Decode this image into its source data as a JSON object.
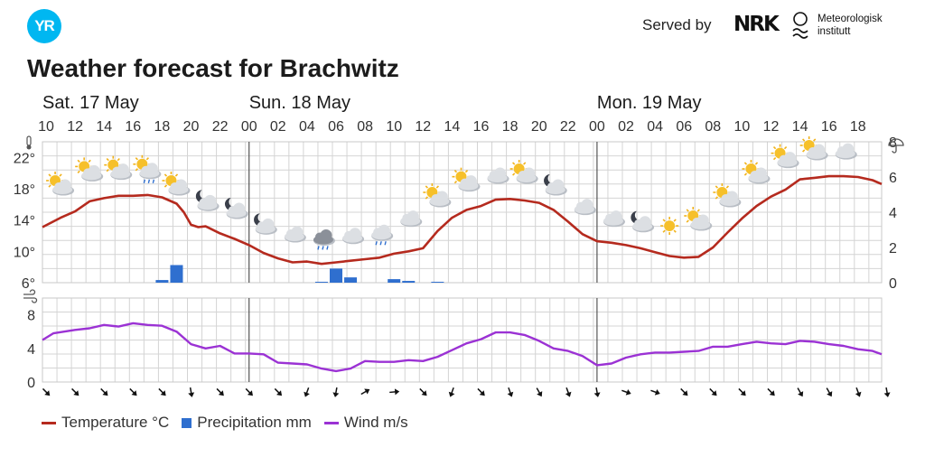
{
  "header": {
    "logo": "YR",
    "served_by": "Served by",
    "nrk": "NRK",
    "met_line1": "Meteorologisk",
    "met_line2": "institutt"
  },
  "title": "Weather forecast for Brachwitz",
  "colors": {
    "temperature": "#b52a1e",
    "precipitation": "#2f6fcf",
    "wind": "#9b32d4",
    "grid": "#d4d4d4",
    "axis": "#555555"
  },
  "legend": {
    "temperature": "Temperature °C",
    "precipitation": "Precipitation mm",
    "wind": "Wind m/s"
  },
  "chart_data": {
    "type": "line",
    "day_labels": [
      {
        "label": "Sat. 17 May",
        "start_hour": 9.75
      },
      {
        "label": "Sun. 18 May",
        "start_hour": 24
      },
      {
        "label": "Mon. 19 May",
        "start_hour": 48
      }
    ],
    "x_hour_range": [
      9.75,
      66
    ],
    "hour_ticks": [
      {
        "h": 10,
        "t": "10"
      },
      {
        "h": 12,
        "t": "12"
      },
      {
        "h": 14,
        "t": "14"
      },
      {
        "h": 16,
        "t": "16"
      },
      {
        "h": 18,
        "t": "18"
      },
      {
        "h": 20,
        "t": "20"
      },
      {
        "h": 22,
        "t": "22"
      },
      {
        "h": 24,
        "t": "00"
      },
      {
        "h": 26,
        "t": "02"
      },
      {
        "h": 28,
        "t": "04"
      },
      {
        "h": 30,
        "t": "06"
      },
      {
        "h": 32,
        "t": "08"
      },
      {
        "h": 34,
        "t": "10"
      },
      {
        "h": 36,
        "t": "12"
      },
      {
        "h": 38,
        "t": "14"
      },
      {
        "h": 40,
        "t": "16"
      },
      {
        "h": 42,
        "t": "18"
      },
      {
        "h": 44,
        "t": "20"
      },
      {
        "h": 46,
        "t": "22"
      },
      {
        "h": 48,
        "t": "00"
      },
      {
        "h": 50,
        "t": "02"
      },
      {
        "h": 52,
        "t": "04"
      },
      {
        "h": 54,
        "t": "06"
      },
      {
        "h": 56,
        "t": "08"
      },
      {
        "h": 58,
        "t": "10"
      },
      {
        "h": 60,
        "t": "12"
      },
      {
        "h": 62,
        "t": "14"
      },
      {
        "h": 64,
        "t": "16"
      },
      {
        "h": 66,
        "t": "18"
      }
    ],
    "temperature": {
      "unit": "°C",
      "ylim": [
        6,
        24
      ],
      "ticks": [
        {
          "v": 6,
          "t": "6°"
        },
        {
          "v": 10,
          "t": "10°"
        },
        {
          "v": 14,
          "t": "14°"
        },
        {
          "v": 18,
          "t": "18°"
        },
        {
          "v": 22,
          "t": "22°"
        }
      ],
      "points": [
        [
          9.75,
          13.1
        ],
        [
          11,
          14.3
        ],
        [
          12,
          15.1
        ],
        [
          13,
          16.4
        ],
        [
          14,
          16.8
        ],
        [
          15,
          17.1
        ],
        [
          16,
          17.1
        ],
        [
          17,
          17.2
        ],
        [
          18,
          16.9
        ],
        [
          19,
          16.1
        ],
        [
          19.5,
          15
        ],
        [
          20,
          13.4
        ],
        [
          20.5,
          13.1
        ],
        [
          21,
          13.2
        ],
        [
          22,
          12.3
        ],
        [
          23,
          11.6
        ],
        [
          24,
          10.8
        ],
        [
          25,
          9.8
        ],
        [
          26,
          9.1
        ],
        [
          27,
          8.6
        ],
        [
          28,
          8.7
        ],
        [
          29,
          8.4
        ],
        [
          30,
          8.6
        ],
        [
          31,
          8.8
        ],
        [
          32,
          9
        ],
        [
          33,
          9.2
        ],
        [
          34,
          9.7
        ],
        [
          35,
          10
        ],
        [
          36,
          10.4
        ],
        [
          37,
          12.6
        ],
        [
          38,
          14.3
        ],
        [
          39,
          15.3
        ],
        [
          40,
          15.8
        ],
        [
          41,
          16.6
        ],
        [
          42,
          16.7
        ],
        [
          43,
          16.5
        ],
        [
          44,
          16.2
        ],
        [
          45,
          15.3
        ],
        [
          46,
          13.8
        ],
        [
          47,
          12.2
        ],
        [
          48,
          11.3
        ],
        [
          49,
          11.1
        ],
        [
          50,
          10.8
        ],
        [
          51,
          10.4
        ],
        [
          52,
          9.9
        ],
        [
          53,
          9.4
        ],
        [
          54,
          9.2
        ],
        [
          55,
          9.3
        ],
        [
          56,
          10.5
        ],
        [
          57,
          12.4
        ],
        [
          58,
          14.2
        ],
        [
          59,
          15.8
        ],
        [
          60,
          17
        ],
        [
          61,
          17.9
        ],
        [
          62,
          19.2
        ],
        [
          63,
          19.4
        ],
        [
          64,
          19.6
        ],
        [
          65,
          19.6
        ],
        [
          66,
          19.5
        ],
        [
          67,
          19.1
        ],
        [
          68,
          18.6
        ]
      ]
    },
    "precipitation": {
      "unit": "mm",
      "ylim": [
        0,
        8
      ],
      "ticks": [
        {
          "v": 0,
          "t": "0"
        },
        {
          "v": 2,
          "t": "2"
        },
        {
          "v": 4,
          "t": "4"
        },
        {
          "v": 6,
          "t": "6"
        },
        {
          "v": 8,
          "t": "8"
        }
      ],
      "bars": [
        {
          "h": 18,
          "v": 0.15
        },
        {
          "h": 19,
          "v": 1
        },
        {
          "h": 29,
          "v": 0.05
        },
        {
          "h": 30,
          "v": 0.8
        },
        {
          "h": 31,
          "v": 0.3
        },
        {
          "h": 34,
          "v": 0.2
        },
        {
          "h": 35,
          "v": 0.1
        },
        {
          "h": 37,
          "v": 0.05
        }
      ]
    },
    "wind": {
      "unit": "m/s",
      "ylim": [
        0,
        10
      ],
      "ticks": [
        {
          "v": 0,
          "t": "0"
        },
        {
          "v": 4,
          "t": "4"
        },
        {
          "v": 8,
          "t": "8"
        }
      ],
      "points": [
        [
          9.75,
          5
        ],
        [
          10.5,
          5.8
        ],
        [
          12,
          6.2
        ],
        [
          13,
          6.4
        ],
        [
          14,
          6.8
        ],
        [
          15,
          6.6
        ],
        [
          16,
          7
        ],
        [
          17,
          6.8
        ],
        [
          18,
          6.7
        ],
        [
          19,
          6
        ],
        [
          20,
          4.5
        ],
        [
          21,
          4
        ],
        [
          22,
          4.3
        ],
        [
          23,
          3.4
        ],
        [
          24,
          3.4
        ],
        [
          25,
          3.3
        ],
        [
          26,
          2.3
        ],
        [
          27,
          2.2
        ],
        [
          28,
          2.1
        ],
        [
          29,
          1.6
        ],
        [
          30,
          1.3
        ],
        [
          31,
          1.6
        ],
        [
          32,
          2.5
        ],
        [
          33,
          2.4
        ],
        [
          34,
          2.4
        ],
        [
          35,
          2.6
        ],
        [
          36,
          2.5
        ],
        [
          37,
          3
        ],
        [
          38,
          3.8
        ],
        [
          39,
          4.6
        ],
        [
          40,
          5.1
        ],
        [
          41,
          5.9
        ],
        [
          42,
          5.9
        ],
        [
          43,
          5.6
        ],
        [
          44,
          4.9
        ],
        [
          45,
          4
        ],
        [
          46,
          3.7
        ],
        [
          47,
          3.1
        ],
        [
          48,
          2
        ],
        [
          49,
          2.2
        ],
        [
          50,
          2.9
        ],
        [
          51,
          3.3
        ],
        [
          52,
          3.5
        ],
        [
          53,
          3.5
        ],
        [
          54,
          3.6
        ],
        [
          55,
          3.7
        ],
        [
          56,
          4.2
        ],
        [
          57,
          4.2
        ],
        [
          58,
          4.5
        ],
        [
          59,
          4.8
        ],
        [
          60,
          4.6
        ],
        [
          61,
          4.5
        ],
        [
          62,
          4.9
        ],
        [
          63,
          4.8
        ],
        [
          64,
          4.5
        ],
        [
          65,
          4.3
        ],
        [
          66,
          3.9
        ],
        [
          67,
          3.7
        ],
        [
          68,
          3.3
        ]
      ]
    },
    "weather_symbols": [
      {
        "h": 11,
        "type": "sun-cloud",
        "temp": 15
      },
      {
        "h": 13,
        "type": "sun-cloud",
        "temp": 16.8
      },
      {
        "h": 15,
        "type": "sun-cloud",
        "temp": 17
      },
      {
        "h": 17,
        "type": "sun-cloud-rain",
        "temp": 17.1
      },
      {
        "h": 19,
        "type": "sun-cloud",
        "temp": 15
      },
      {
        "h": 21,
        "type": "moon-cloud",
        "temp": 13
      },
      {
        "h": 23,
        "type": "moon-cloud",
        "temp": 12
      },
      {
        "h": 25,
        "type": "moon-cloud",
        "temp": 10
      },
      {
        "h": 27,
        "type": "cloud",
        "temp": 9
      },
      {
        "h": 29,
        "type": "dark-cloud-rain",
        "temp": 8.6
      },
      {
        "h": 31,
        "type": "cloud",
        "temp": 8.8
      },
      {
        "h": 33,
        "type": "cloud-rain",
        "temp": 9.2
      },
      {
        "h": 35,
        "type": "cloud",
        "temp": 11
      },
      {
        "h": 37,
        "type": "sun-cloud",
        "temp": 13.5
      },
      {
        "h": 39,
        "type": "sun-cloud",
        "temp": 15.5
      },
      {
        "h": 41,
        "type": "cloud",
        "temp": 16.5
      },
      {
        "h": 43,
        "type": "sun-cloud",
        "temp": 16.5
      },
      {
        "h": 45,
        "type": "moon-cloud",
        "temp": 15
      },
      {
        "h": 47,
        "type": "cloud",
        "temp": 12.5
      },
      {
        "h": 49,
        "type": "cloud",
        "temp": 11
      },
      {
        "h": 51,
        "type": "moon-cloud",
        "temp": 10.3
      },
      {
        "h": 53,
        "type": "sun",
        "temp": 9.8
      },
      {
        "h": 55,
        "type": "sun-cloud",
        "temp": 10.5
      },
      {
        "h": 57,
        "type": "sun-cloud",
        "temp": 13.5
      },
      {
        "h": 59,
        "type": "sun-cloud",
        "temp": 16.5
      },
      {
        "h": 61,
        "type": "sun-cloud",
        "temp": 18.5
      },
      {
        "h": 63,
        "type": "sun-cloud",
        "temp": 19.5
      },
      {
        "h": 65,
        "type": "cloud",
        "temp": 19.6
      }
    ],
    "wind_dirs": [
      {
        "h": 10,
        "deg": 135
      },
      {
        "h": 12,
        "deg": 135
      },
      {
        "h": 14,
        "deg": 135
      },
      {
        "h": 16,
        "deg": 135
      },
      {
        "h": 18,
        "deg": 135
      },
      {
        "h": 20,
        "deg": 170
      },
      {
        "h": 22,
        "deg": 135
      },
      {
        "h": 24,
        "deg": 135
      },
      {
        "h": 26,
        "deg": 135
      },
      {
        "h": 28,
        "deg": 200
      },
      {
        "h": 30,
        "deg": 190
      },
      {
        "h": 32,
        "deg": 60
      },
      {
        "h": 34,
        "deg": 85
      },
      {
        "h": 36,
        "deg": 135
      },
      {
        "h": 38,
        "deg": 200
      },
      {
        "h": 40,
        "deg": 135
      },
      {
        "h": 42,
        "deg": 160
      },
      {
        "h": 44,
        "deg": 150
      },
      {
        "h": 46,
        "deg": 160
      },
      {
        "h": 48,
        "deg": 170
      },
      {
        "h": 50,
        "deg": 110
      },
      {
        "h": 52,
        "deg": 110
      },
      {
        "h": 54,
        "deg": 135
      },
      {
        "h": 56,
        "deg": 135
      },
      {
        "h": 58,
        "deg": 135
      },
      {
        "h": 60,
        "deg": 135
      },
      {
        "h": 62,
        "deg": 150
      },
      {
        "h": 64,
        "deg": 150
      },
      {
        "h": 66,
        "deg": 160
      },
      {
        "h": 68,
        "deg": 170
      }
    ]
  }
}
